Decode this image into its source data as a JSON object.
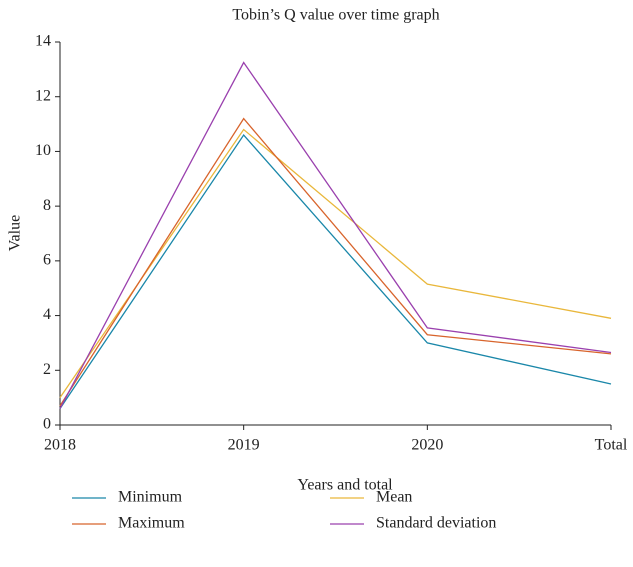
{
  "chart_data": {
    "type": "line",
    "title": "Tobin’s Q value over time graph",
    "x_label": "Years and total",
    "y_label": "Value",
    "categories": [
      "2018",
      "2019",
      "2020",
      "Total"
    ],
    "series": [
      {
        "name": "Minimum",
        "color": "#1a87a9",
        "values": [
          0.6,
          10.6,
          3.0,
          1.5
        ]
      },
      {
        "name": "Mean",
        "color": "#e9b73b",
        "values": [
          1.0,
          10.8,
          5.15,
          3.9
        ]
      },
      {
        "name": "Maximum",
        "color": "#d8642c",
        "values": [
          0.7,
          11.2,
          3.3,
          2.6
        ]
      },
      {
        "name": "Standard deviation",
        "color": "#9a40ae",
        "values": [
          0.6,
          13.25,
          3.55,
          2.65
        ]
      }
    ],
    "ylim": [
      0,
      14
    ],
    "yticks": [
      0,
      2,
      4,
      6,
      8,
      10,
      12,
      14
    ],
    "grid": false
  }
}
